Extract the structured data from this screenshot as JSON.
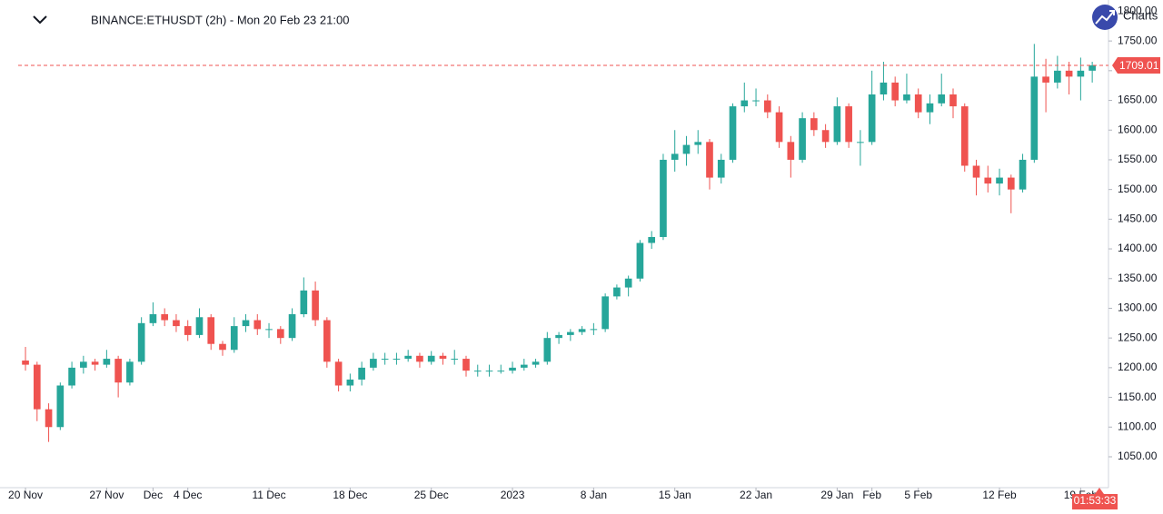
{
  "chart_data": {
    "type": "candlestick",
    "title": "BINANCE:ETHUSDT (2h) - Mon 20 Feb 23 21:00",
    "brand": "Charts",
    "countdown": "01:53:33",
    "last_price": 1709.01,
    "last_price_color": "#ef5350",
    "up_color": "#26a69a",
    "down_color": "#ef5350",
    "x": [
      0,
      1,
      2,
      3,
      4,
      5,
      6,
      7,
      8,
      9,
      10,
      11,
      12,
      13,
      14,
      15,
      16,
      17,
      18,
      19,
      20,
      21,
      22,
      23,
      24,
      25,
      26,
      27,
      28,
      29,
      30,
      31,
      32,
      33,
      34,
      35,
      36,
      37,
      38,
      39,
      40,
      41,
      42,
      43,
      44,
      45,
      46,
      47,
      48,
      49,
      50,
      51,
      52,
      53,
      54,
      55,
      56,
      57,
      58,
      59,
      60,
      61,
      62,
      63,
      64,
      65,
      66,
      67,
      68,
      69,
      70,
      71,
      72,
      73,
      74,
      75,
      76,
      77,
      78,
      79,
      80,
      81,
      82,
      83,
      84,
      85,
      86,
      87,
      88,
      89,
      90,
      91,
      92
    ],
    "ohlc": [
      [
        1212,
        1235,
        1195,
        1205
      ],
      [
        1205,
        1210,
        1110,
        1130
      ],
      [
        1130,
        1140,
        1075,
        1100
      ],
      [
        1100,
        1175,
        1095,
        1170
      ],
      [
        1170,
        1210,
        1165,
        1200
      ],
      [
        1200,
        1220,
        1190,
        1210
      ],
      [
        1210,
        1215,
        1195,
        1205
      ],
      [
        1205,
        1230,
        1200,
        1215
      ],
      [
        1215,
        1220,
        1150,
        1175
      ],
      [
        1175,
        1215,
        1170,
        1210
      ],
      [
        1210,
        1285,
        1205,
        1275
      ],
      [
        1275,
        1310,
        1270,
        1290
      ],
      [
        1290,
        1300,
        1270,
        1280
      ],
      [
        1280,
        1290,
        1260,
        1270
      ],
      [
        1270,
        1280,
        1245,
        1255
      ],
      [
        1255,
        1300,
        1250,
        1285
      ],
      [
        1285,
        1290,
        1230,
        1240
      ],
      [
        1240,
        1245,
        1220,
        1230
      ],
      [
        1230,
        1285,
        1225,
        1270
      ],
      [
        1270,
        1290,
        1260,
        1280
      ],
      [
        1280,
        1290,
        1255,
        1265
      ],
      [
        1265,
        1275,
        1250,
        1265
      ],
      [
        1265,
        1270,
        1240,
        1250
      ],
      [
        1250,
        1300,
        1245,
        1290
      ],
      [
        1290,
        1352,
        1285,
        1330
      ],
      [
        1330,
        1345,
        1270,
        1280
      ],
      [
        1280,
        1285,
        1200,
        1210
      ],
      [
        1210,
        1215,
        1160,
        1170
      ],
      [
        1170,
        1190,
        1160,
        1180
      ],
      [
        1180,
        1210,
        1170,
        1200
      ],
      [
        1200,
        1225,
        1195,
        1215
      ],
      [
        1215,
        1225,
        1205,
        1215
      ],
      [
        1215,
        1225,
        1205,
        1215
      ],
      [
        1215,
        1230,
        1210,
        1220
      ],
      [
        1220,
        1225,
        1200,
        1210
      ],
      [
        1210,
        1228,
        1205,
        1220
      ],
      [
        1220,
        1225,
        1205,
        1215
      ],
      [
        1215,
        1230,
        1205,
        1215
      ],
      [
        1215,
        1220,
        1185,
        1195
      ],
      [
        1195,
        1205,
        1185,
        1195
      ],
      [
        1195,
        1205,
        1185,
        1195
      ],
      [
        1195,
        1205,
        1190,
        1195
      ],
      [
        1195,
        1210,
        1190,
        1200
      ],
      [
        1200,
        1215,
        1195,
        1205
      ],
      [
        1205,
        1215,
        1200,
        1210
      ],
      [
        1210,
        1260,
        1205,
        1250
      ],
      [
        1250,
        1260,
        1240,
        1255
      ],
      [
        1255,
        1265,
        1245,
        1260
      ],
      [
        1260,
        1270,
        1255,
        1265
      ],
      [
        1265,
        1275,
        1255,
        1265
      ],
      [
        1265,
        1325,
        1260,
        1320
      ],
      [
        1320,
        1340,
        1315,
        1335
      ],
      [
        1335,
        1355,
        1320,
        1350
      ],
      [
        1350,
        1415,
        1345,
        1410
      ],
      [
        1410,
        1430,
        1400,
        1420
      ],
      [
        1420,
        1560,
        1415,
        1550
      ],
      [
        1550,
        1600,
        1530,
        1560
      ],
      [
        1560,
        1590,
        1540,
        1575
      ],
      [
        1575,
        1600,
        1560,
        1580
      ],
      [
        1580,
        1585,
        1500,
        1520
      ],
      [
        1520,
        1560,
        1510,
        1550
      ],
      [
        1550,
        1645,
        1545,
        1640
      ],
      [
        1640,
        1680,
        1630,
        1650
      ],
      [
        1650,
        1670,
        1640,
        1650
      ],
      [
        1650,
        1660,
        1620,
        1630
      ],
      [
        1630,
        1640,
        1570,
        1580
      ],
      [
        1580,
        1590,
        1520,
        1550
      ],
      [
        1550,
        1630,
        1545,
        1620
      ],
      [
        1620,
        1630,
        1590,
        1600
      ],
      [
        1600,
        1610,
        1570,
        1580
      ],
      [
        1580,
        1655,
        1575,
        1640
      ],
      [
        1640,
        1645,
        1570,
        1580
      ],
      [
        1580,
        1600,
        1540,
        1580
      ],
      [
        1580,
        1700,
        1575,
        1660
      ],
      [
        1660,
        1715,
        1650,
        1680
      ],
      [
        1680,
        1690,
        1640,
        1650
      ],
      [
        1650,
        1695,
        1645,
        1660
      ],
      [
        1660,
        1670,
        1620,
        1630
      ],
      [
        1630,
        1660,
        1610,
        1645
      ],
      [
        1645,
        1695,
        1640,
        1660
      ],
      [
        1660,
        1670,
        1620,
        1640
      ],
      [
        1640,
        1645,
        1530,
        1540
      ],
      [
        1540,
        1550,
        1490,
        1520
      ],
      [
        1520,
        1540,
        1495,
        1510
      ],
      [
        1510,
        1535,
        1490,
        1520
      ],
      [
        1520,
        1525,
        1460,
        1500
      ],
      [
        1500,
        1560,
        1495,
        1550
      ],
      [
        1550,
        1745,
        1545,
        1690
      ],
      [
        1690,
        1720,
        1630,
        1680
      ],
      [
        1680,
        1725,
        1670,
        1700
      ],
      [
        1700,
        1715,
        1660,
        1690
      ],
      [
        1690,
        1722,
        1650,
        1700
      ],
      [
        1700,
        1715,
        1680,
        1709.01
      ]
    ],
    "xlim": [
      -0.63,
      93.4
    ],
    "xticks": [
      {
        "value": 0,
        "label": "20 Nov"
      },
      {
        "value": 7,
        "label": "27 Nov"
      },
      {
        "value": 11,
        "label": "Dec"
      },
      {
        "value": 14,
        "label": "4 Dec"
      },
      {
        "value": 21,
        "label": "11 Dec"
      },
      {
        "value": 28,
        "label": "18 Dec"
      },
      {
        "value": 35,
        "label": "25 Dec"
      },
      {
        "value": 42,
        "label": "2023"
      },
      {
        "value": 49,
        "label": "8 Jan"
      },
      {
        "value": 56,
        "label": "15 Jan"
      },
      {
        "value": 63,
        "label": "22 Jan"
      },
      {
        "value": 70,
        "label": "29 Jan"
      },
      {
        "value": 73,
        "label": "Feb"
      },
      {
        "value": 77,
        "label": "5 Feb"
      },
      {
        "value": 84,
        "label": "12 Feb"
      },
      {
        "value": 91,
        "label": "19 Feb"
      }
    ],
    "ylim": [
      998,
      1819
    ],
    "yticks": [
      {
        "value": 1050,
        "label": "1050.00"
      },
      {
        "value": 1100,
        "label": "1100.00"
      },
      {
        "value": 1150,
        "label": "1150.00"
      },
      {
        "value": 1200,
        "label": "1200.00"
      },
      {
        "value": 1250,
        "label": "1250.00"
      },
      {
        "value": 1300,
        "label": "1300.00"
      },
      {
        "value": 1350,
        "label": "1350.00"
      },
      {
        "value": 1400,
        "label": "1400.00"
      },
      {
        "value": 1450,
        "label": "1450.00"
      },
      {
        "value": 1500,
        "label": "1500.00"
      },
      {
        "value": 1550,
        "label": "1550.00"
      },
      {
        "value": 1600,
        "label": "1600.00"
      },
      {
        "value": 1650,
        "label": "1650.00"
      },
      {
        "value": 1700,
        "label": "1700.00"
      },
      {
        "value": 1750,
        "label": "1750.00"
      },
      {
        "value": 1800,
        "label": "1800.00"
      }
    ],
    "grid": false
  }
}
